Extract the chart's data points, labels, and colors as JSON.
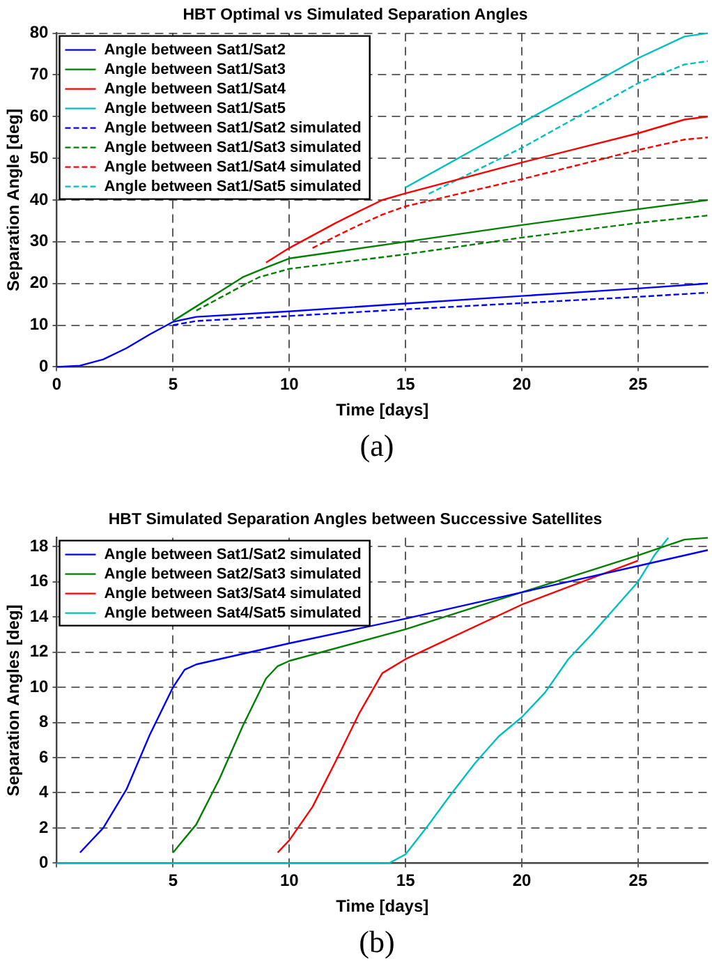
{
  "chart_data": [
    {
      "type": "line",
      "title": "HBT Optimal vs Simulated Separation Angles",
      "xlabel": "Time [days]",
      "ylabel": "Separation Angle [deg]",
      "annotations": [
        "(a)"
      ],
      "xlim": [
        0,
        28
      ],
      "ylim": [
        0,
        80
      ],
      "xticks": [
        0,
        5,
        10,
        15,
        20,
        25
      ],
      "yticks": [
        0,
        10,
        20,
        30,
        40,
        50,
        60,
        70,
        80
      ],
      "grid": true,
      "legend": "top left",
      "series": [
        {
          "name": "Angle between Sat1/Sat2",
          "color": "#0000ff",
          "x": [
            0,
            1,
            2,
            3,
            4,
            5,
            6,
            10,
            15,
            20,
            25,
            28
          ],
          "values": [
            0,
            0.3,
            1.8,
            4.5,
            7.8,
            10.8,
            12,
            13.3,
            15.2,
            17,
            18.8,
            20
          ]
        },
        {
          "name": "Angle between Sat1/Sat3",
          "color": "#008000",
          "x": [
            5,
            6,
            7,
            8,
            9,
            10,
            15,
            20,
            25,
            28
          ],
          "values": [
            11,
            14.5,
            18,
            21.5,
            23.8,
            26,
            30,
            34,
            37.8,
            40
          ]
        },
        {
          "name": "Angle between Sat1/Sat4",
          "color": "#ff0000",
          "x": [
            9,
            10,
            11,
            12,
            13,
            14,
            15,
            20,
            25,
            27,
            28
          ],
          "values": [
            25,
            28.5,
            31.5,
            34.5,
            37.3,
            40,
            41.6,
            49,
            56,
            59.3,
            60
          ]
        },
        {
          "name": "Angle between Sat1/Sat5",
          "color": "#00bfbf",
          "x": [
            15,
            20,
            25,
            27,
            28
          ],
          "values": [
            43,
            58.5,
            74,
            79.2,
            80
          ]
        },
        {
          "name": "Angle between Sat1/Sat2 simulated",
          "color": "#0000ff",
          "line_style": "dashed",
          "x": [
            5,
            6,
            10,
            15,
            20,
            25,
            28
          ],
          "values": [
            10,
            11,
            12.2,
            13.8,
            15.3,
            16.8,
            17.8
          ]
        },
        {
          "name": "Angle between Sat1/Sat3 simulated",
          "color": "#008000",
          "line_style": "dashed",
          "x": [
            6,
            7,
            8,
            8.7,
            10,
            15,
            20,
            25,
            28
          ],
          "values": [
            13.5,
            16.5,
            19.5,
            21.5,
            23.5,
            27,
            31,
            34.5,
            36.3
          ]
        },
        {
          "name": "Angle between Sat1/Sat4 simulated",
          "color": "#ff0000",
          "line_style": "dashed",
          "x": [
            11,
            12,
            13,
            14,
            15,
            20,
            25,
            27,
            28
          ],
          "values": [
            28.5,
            31.3,
            34,
            36.5,
            38.5,
            45,
            52,
            54.5,
            55
          ]
        },
        {
          "name": "Angle between Sat1/Sat5 simulated",
          "color": "#00bfbf",
          "line_style": "dashed",
          "x": [
            16,
            20,
            25,
            27,
            28
          ],
          "values": [
            41.5,
            52.5,
            68,
            72.5,
            73.3
          ]
        }
      ]
    },
    {
      "type": "line",
      "title": "HBT Simulated Separation Angles between Successive Satellites",
      "xlabel": "Time [days]",
      "ylabel": "Separation Angles [deg]",
      "annotations": [
        "(b)"
      ],
      "xlim": [
        0,
        28
      ],
      "ylim": [
        0,
        18.5
      ],
      "xticks": [
        {
          "value": 0,
          "label": null
        },
        5,
        10,
        15,
        20,
        25
      ],
      "yticks": [
        0,
        2,
        4,
        6,
        8,
        10,
        12,
        14,
        16,
        18
      ],
      "grid": true,
      "legend": "top left",
      "series": [
        {
          "name": "Angle between Sat1/Sat2 simulated",
          "color": "#0000ff",
          "x": [
            1,
            2,
            3,
            4,
            5,
            5.5,
            6,
            10,
            15,
            20,
            25,
            28
          ],
          "values": [
            0.6,
            2,
            4.2,
            7.3,
            10,
            11,
            11.3,
            12.5,
            13.9,
            15.4,
            16.9,
            17.8
          ]
        },
        {
          "name": "Angle between Sat2/Sat3 simulated",
          "color": "#008000",
          "x": [
            5,
            6,
            7,
            8,
            9,
            9.5,
            10,
            15,
            25,
            27,
            28
          ],
          "values": [
            0.6,
            2.2,
            4.8,
            7.8,
            10.5,
            11.2,
            11.5,
            13.3,
            17.5,
            18.4,
            18.5
          ]
        },
        {
          "name": "Angle between Sat3/Sat4 simulated",
          "color": "#ff0000",
          "x": [
            9.5,
            10,
            11,
            12,
            13,
            14,
            15,
            20,
            25
          ],
          "values": [
            0.6,
            1.3,
            3.2,
            5.8,
            8.5,
            10.8,
            11.6,
            14.7,
            17.2
          ]
        },
        {
          "name": "Angle between Sat4/Sat5 simulated",
          "color": "#00bfbf",
          "x": [
            0,
            14.3,
            15,
            16,
            17,
            18,
            19,
            20,
            21,
            22,
            23,
            24,
            25,
            25.7,
            26.3
          ],
          "values": [
            0,
            0,
            0.5,
            2.2,
            4,
            5.7,
            7.2,
            8.3,
            9.7,
            11.6,
            13,
            14.5,
            16,
            17.5,
            18.5
          ]
        }
      ]
    }
  ]
}
